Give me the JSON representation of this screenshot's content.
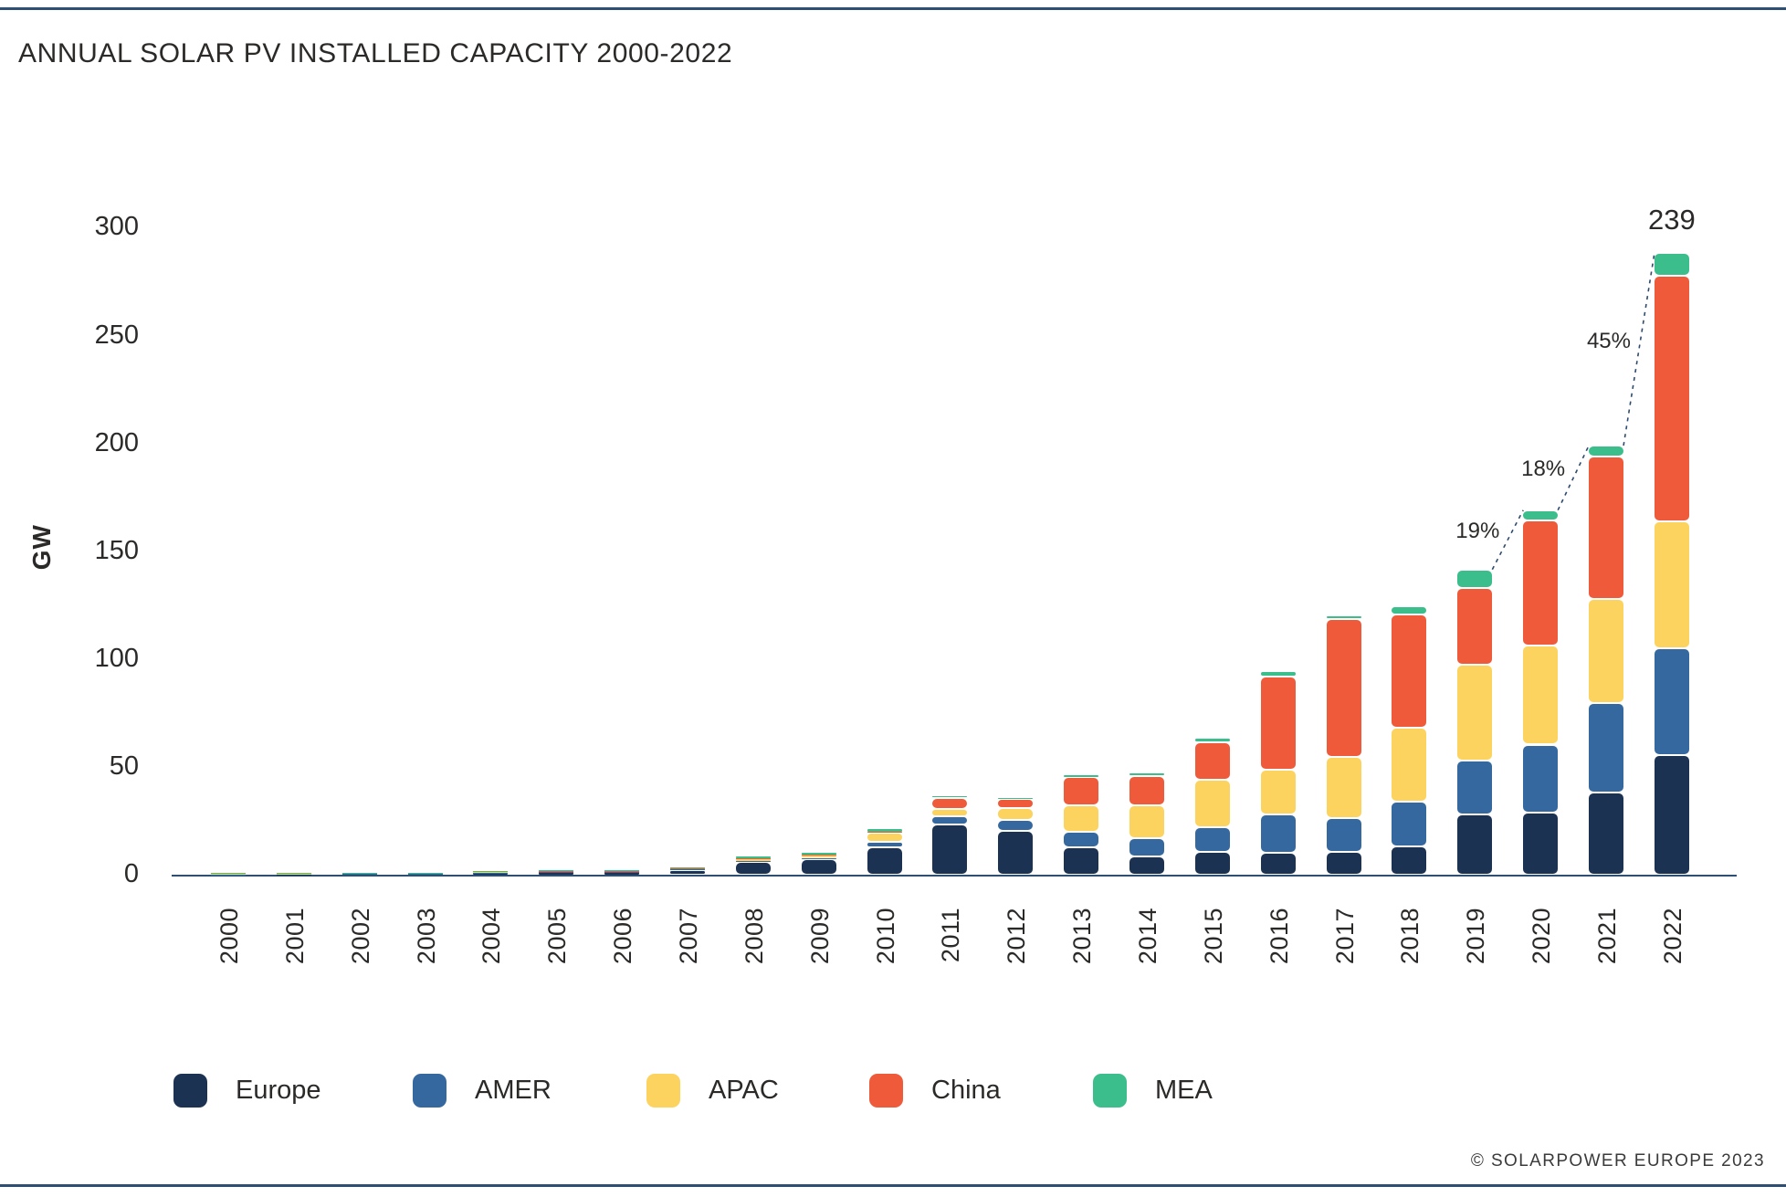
{
  "page": {
    "title": "ANNUAL SOLAR PV INSTALLED CAPACITY 2000-2022",
    "footer": "© SOLARPOWER EUROPE 2023"
  },
  "chart_data": {
    "type": "bar",
    "stacked": true,
    "title": "ANNUAL SOLAR PV INSTALLED CAPACITY 2000-2022",
    "xlabel": "",
    "ylabel": "GW",
    "ylim": [
      0,
      300
    ],
    "yticks": [
      0,
      50,
      100,
      150,
      200,
      250,
      300
    ],
    "grid": false,
    "legend_position": "bottom",
    "categories": [
      "2000",
      "2001",
      "2002",
      "2003",
      "2004",
      "2005",
      "2006",
      "2007",
      "2008",
      "2009",
      "2010",
      "2011",
      "2012",
      "2013",
      "2014",
      "2015",
      "2016",
      "2017",
      "2018",
      "2019",
      "2020",
      "2021",
      "2022"
    ],
    "series": [
      {
        "name": "Europe",
        "color": "#1c3252",
        "values": [
          0.1,
          0.15,
          0.2,
          0.25,
          0.7,
          1.0,
          1.0,
          1.9,
          5.0,
          5.8,
          10.5,
          19.3,
          17.0,
          10.5,
          7.0,
          8.8,
          8.4,
          8.8,
          10.9,
          23.2,
          24.0,
          31.7,
          45.8
        ]
      },
      {
        "name": "AMER",
        "color": "#35689f",
        "values": [
          0.05,
          0.05,
          0.05,
          0.05,
          0.1,
          0.1,
          0.15,
          0.2,
          0.3,
          0.6,
          2.0,
          3.2,
          4.0,
          6.0,
          7.0,
          9.5,
          14.8,
          13.0,
          17.2,
          20.7,
          26.0,
          34.4,
          41.2
        ]
      },
      {
        "name": "APAC",
        "color": "#fcd35f",
        "values": [
          0.4,
          0.3,
          0.3,
          0.35,
          0.4,
          0.35,
          0.35,
          0.3,
          1.0,
          1.2,
          3.5,
          2.7,
          4.5,
          10.0,
          12.7,
          18.3,
          17.2,
          23.6,
          28.5,
          36.9,
          38.0,
          39.7,
          48.9
        ]
      },
      {
        "name": "China",
        "color": "#ee5a3a",
        "values": [
          0.05,
          0.05,
          0.05,
          0.05,
          0.05,
          0.05,
          0.05,
          0.05,
          0.1,
          0.2,
          0.5,
          4.2,
          3.5,
          11.0,
          11.3,
          14.4,
          35.9,
          52.7,
          43.3,
          29.5,
          48.2,
          54.9,
          94.3
        ]
      },
      {
        "name": "MEA",
        "color": "#3cbe8c",
        "values": [
          0.15,
          0.15,
          0.15,
          0.15,
          0.15,
          0.15,
          0.2,
          0.25,
          0.5,
          0.5,
          1.0,
          1.1,
          0.5,
          0.7,
          1.4,
          1.8,
          1.8,
          1.4,
          3.2,
          7.0,
          3.9,
          4.2,
          8.7
        ]
      }
    ],
    "annotations": {
      "total_label": {
        "year": "2022",
        "text": "239"
      },
      "growth_labels": [
        {
          "from": "2019",
          "to": "2020",
          "text": "19%"
        },
        {
          "from": "2020",
          "to": "2021",
          "text": "18%"
        },
        {
          "from": "2021",
          "to": "2022",
          "text": "45%"
        }
      ]
    }
  },
  "colors": {
    "rule": "#2e4e74",
    "axis_line": "#2e4e74",
    "dashed_line": "#2e4a6e",
    "text": "#2b2a28"
  }
}
